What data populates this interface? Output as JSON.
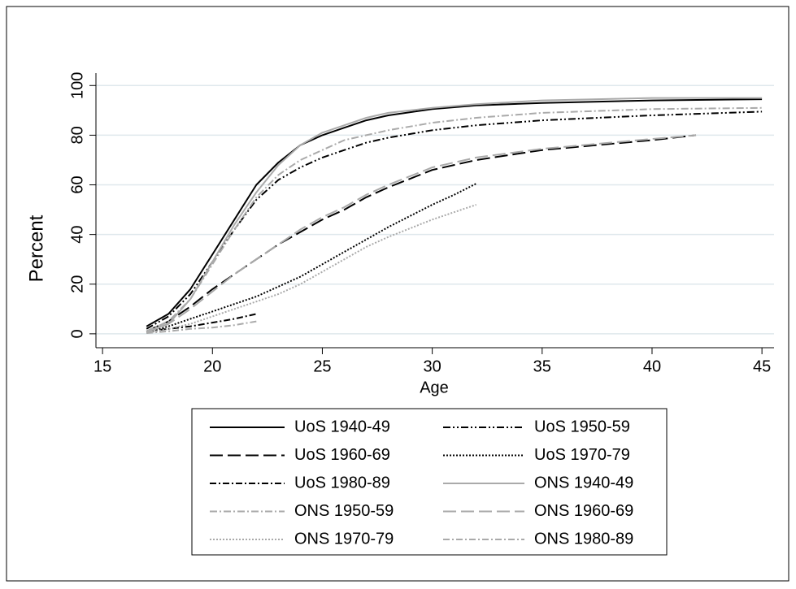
{
  "chart_data": {
    "type": "line",
    "x_label": "Age",
    "y_label": "Percent",
    "xlim": [
      14.7,
      45.55
    ],
    "ylim": [
      -5.6,
      105
    ],
    "xticks": [
      15,
      20,
      25,
      30,
      35,
      40,
      45
    ],
    "yticks": [
      0,
      20,
      40,
      60,
      80,
      100
    ],
    "grid": true,
    "legend": "bottom",
    "series": [
      {
        "name": "UoS 1940-49",
        "color": "#000000",
        "dash": "none",
        "x": [
          17,
          18,
          19,
          20,
          21,
          22,
          23,
          24,
          25,
          26,
          27,
          28,
          30,
          32,
          35,
          40,
          45
        ],
        "values": [
          3,
          8,
          18,
          32,
          46,
          60,
          69,
          76,
          80,
          83,
          86,
          88,
          90.5,
          92,
          93,
          94,
          94.5
        ]
      },
      {
        "name": "UoS 1950-59",
        "color": "#000000",
        "dash": "9,3,2,3,2,3",
        "x": [
          17,
          18,
          19,
          20,
          21,
          22,
          23,
          24,
          25,
          26,
          27,
          28,
          30,
          32,
          35,
          40,
          45
        ],
        "values": [
          2,
          7,
          16,
          29,
          42,
          54,
          62,
          67,
          71,
          74,
          77,
          79,
          82,
          84,
          86,
          88,
          89.5
        ]
      },
      {
        "name": "UoS 1960-69",
        "color": "#000000",
        "dash": "16,6",
        "x": [
          17,
          18,
          19,
          20,
          21,
          22,
          23,
          24,
          25,
          26,
          27,
          28,
          30,
          32,
          35,
          40,
          42
        ],
        "values": [
          1,
          5,
          11,
          18,
          24,
          30,
          36,
          41,
          46,
          50,
          55,
          59,
          66,
          70,
          74,
          78,
          80
        ]
      },
      {
        "name": "UoS 1970-79",
        "color": "#000000",
        "dash": "2,2",
        "x": [
          17,
          18,
          19,
          20,
          21,
          22,
          23,
          24,
          25,
          26,
          27,
          28,
          30,
          31,
          32
        ],
        "values": [
          0.5,
          3,
          6,
          9,
          12,
          15,
          19,
          23,
          28,
          33,
          38,
          43,
          52,
          56,
          60.5
        ]
      },
      {
        "name": "UoS 1980-89",
        "color": "#000000",
        "dash": "8,3,2,3",
        "x": [
          17,
          18,
          19,
          20,
          21,
          22
        ],
        "values": [
          1,
          2,
          3,
          4.5,
          6,
          8
        ]
      },
      {
        "name": "ONS 1940-49",
        "color": "#aaaaaa",
        "dash": "none",
        "x": [
          17,
          18,
          19,
          20,
          21,
          22,
          23,
          24,
          25,
          26,
          27,
          28,
          30,
          32,
          35,
          40,
          45
        ],
        "values": [
          1,
          4,
          14,
          29,
          44,
          57,
          68,
          76,
          81,
          84,
          87,
          89,
          91,
          92.5,
          94,
          95,
          95
        ]
      },
      {
        "name": "ONS 1950-59",
        "color": "#aaaaaa",
        "dash": "9,3,2,3",
        "x": [
          17,
          18,
          19,
          20,
          21,
          22,
          23,
          24,
          25,
          26,
          27,
          28,
          30,
          32,
          35,
          40,
          45
        ],
        "values": [
          1,
          5,
          14,
          28,
          42,
          55,
          64,
          70,
          74,
          78,
          80,
          82,
          85,
          87,
          89,
          90.5,
          91
        ]
      },
      {
        "name": "ONS 1960-69",
        "color": "#aaaaaa",
        "dash": "16,6",
        "x": [
          17,
          18,
          19,
          20,
          21,
          22,
          23,
          24,
          25,
          26,
          27,
          28,
          30,
          32,
          35,
          40,
          42
        ],
        "values": [
          0.5,
          4,
          10,
          17,
          24,
          30,
          36,
          42,
          47,
          51,
          56,
          60,
          67,
          71,
          74.5,
          78.5,
          80
        ]
      },
      {
        "name": "ONS 1970-79",
        "color": "#aaaaaa",
        "dash": "2,2",
        "x": [
          17,
          18,
          19,
          20,
          21,
          22,
          23,
          24,
          25,
          26,
          27,
          28,
          30,
          31,
          32
        ],
        "values": [
          0.3,
          2,
          4,
          7,
          10,
          13,
          16,
          20,
          25,
          30,
          35,
          39,
          46,
          49,
          52
        ]
      },
      {
        "name": "ONS 1980-89",
        "color": "#aaaaaa",
        "dash": "8,3,2,3",
        "x": [
          17,
          18,
          19,
          20,
          21,
          22
        ],
        "values": [
          0.3,
          1,
          2,
          2.5,
          3.5,
          5
        ]
      }
    ]
  }
}
